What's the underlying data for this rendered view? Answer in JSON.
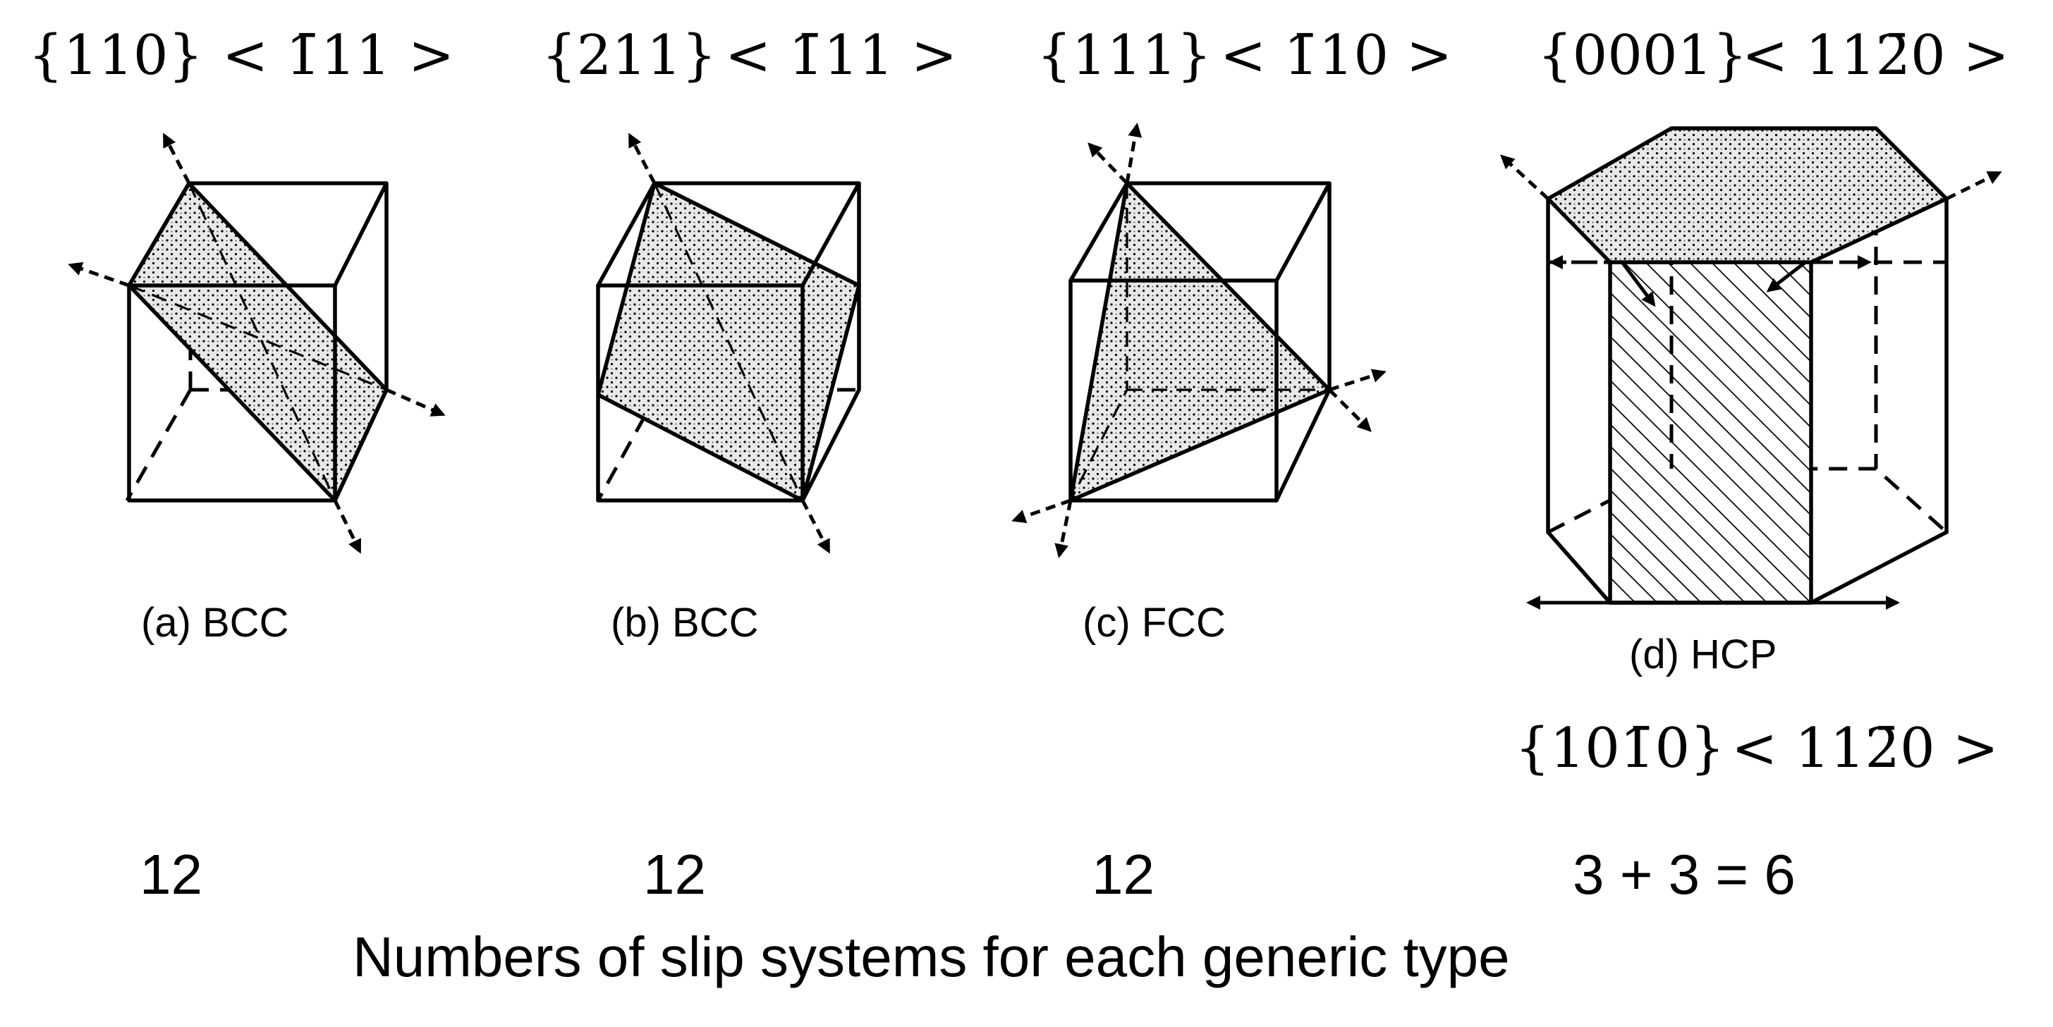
{
  "slip_systems": [
    {
      "slip_plane": "{110}",
      "slip_direction": "< 1̄11 >",
      "caption": "(a) BCC",
      "count": "12"
    },
    {
      "slip_plane": "{211}",
      "slip_direction": "< 1̄11 >",
      "caption": "(b) BCC",
      "count": "12"
    },
    {
      "slip_plane": "{111}",
      "slip_direction": "< 1̄10 >",
      "caption": "(c) FCC",
      "count": "12"
    },
    {
      "slip_plane": "{0001}",
      "slip_direction": "< 112̄0 >",
      "caption": "(d) HCP",
      "secondary_slip_plane": "{101̄0}",
      "secondary_slip_direction": "< 112̄0 >",
      "count": "3 + 3 = 6"
    }
  ],
  "footer": "Numbers of slip systems for each generic type"
}
